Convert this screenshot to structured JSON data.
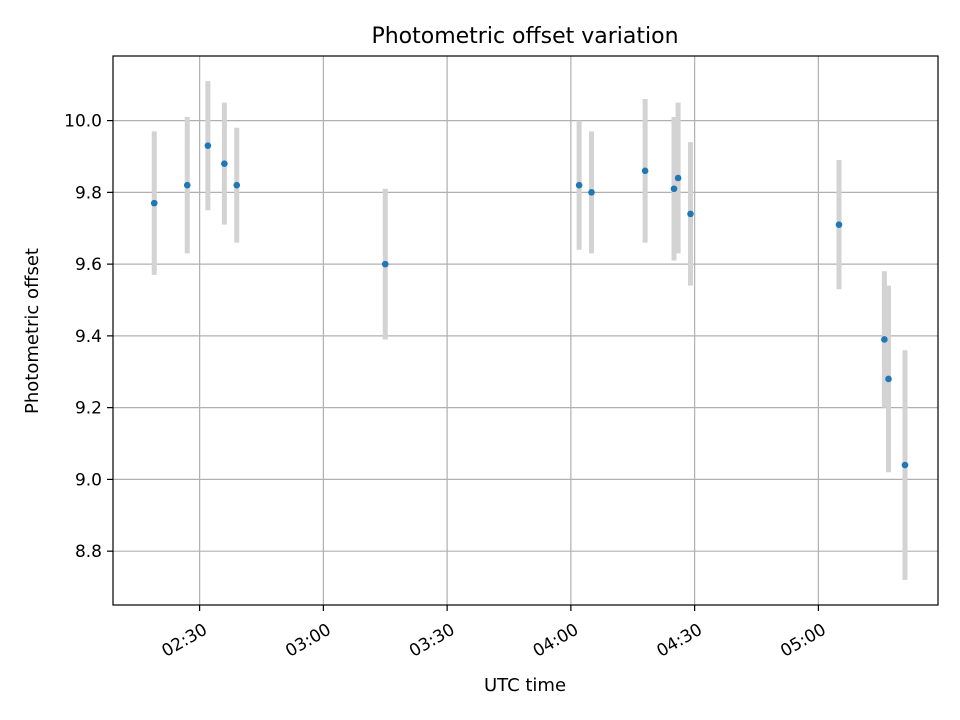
{
  "chart_data": {
    "type": "scatter",
    "title": "Photometric offset variation",
    "xlabel": "UTC time",
    "ylabel": "Photometric offset",
    "x_tick_labels": [
      "02:30",
      "03:00",
      "03:30",
      "04:00",
      "04:30",
      "05:00"
    ],
    "y_tick_labels": [
      "8.8",
      "9.0",
      "9.2",
      "9.4",
      "9.6",
      "9.8",
      "10.0"
    ],
    "x_ticks": [
      "02:30",
      "03:00",
      "03:30",
      "04:00",
      "04:30",
      "05:00"
    ],
    "y_ticks": [
      8.8,
      9.0,
      9.2,
      9.4,
      9.6,
      9.8,
      10.0
    ],
    "xlim": [
      "02:09",
      "05:29"
    ],
    "ylim": [
      8.65,
      10.18
    ],
    "grid": true,
    "marker_color": "#1f77b4",
    "errorbar_color": "#d3d3d3",
    "series": [
      {
        "points": [
          {
            "x": "02:19",
            "y": 9.77,
            "err": 0.2
          },
          {
            "x": "02:27",
            "y": 9.82,
            "err": 0.19
          },
          {
            "x": "02:32",
            "y": 9.93,
            "err": 0.18
          },
          {
            "x": "02:36",
            "y": 9.88,
            "err": 0.17
          },
          {
            "x": "02:39",
            "y": 9.82,
            "err": 0.16
          },
          {
            "x": "03:15",
            "y": 9.6,
            "err": 0.21
          },
          {
            "x": "04:02",
            "y": 9.82,
            "err": 0.18
          },
          {
            "x": "04:05",
            "y": 9.8,
            "err": 0.17
          },
          {
            "x": "04:18",
            "y": 9.86,
            "err": 0.2
          },
          {
            "x": "04:25",
            "y": 9.81,
            "err": 0.2
          },
          {
            "x": "04:26",
            "y": 9.84,
            "err": 0.21
          },
          {
            "x": "04:29",
            "y": 9.74,
            "err": 0.2
          },
          {
            "x": "05:05",
            "y": 9.71,
            "err": 0.18
          },
          {
            "x": "05:16",
            "y": 9.39,
            "err": 0.19
          },
          {
            "x": "05:17",
            "y": 9.28,
            "err": 0.26
          },
          {
            "x": "05:21",
            "y": 9.04,
            "err": 0.32
          }
        ]
      }
    ]
  }
}
